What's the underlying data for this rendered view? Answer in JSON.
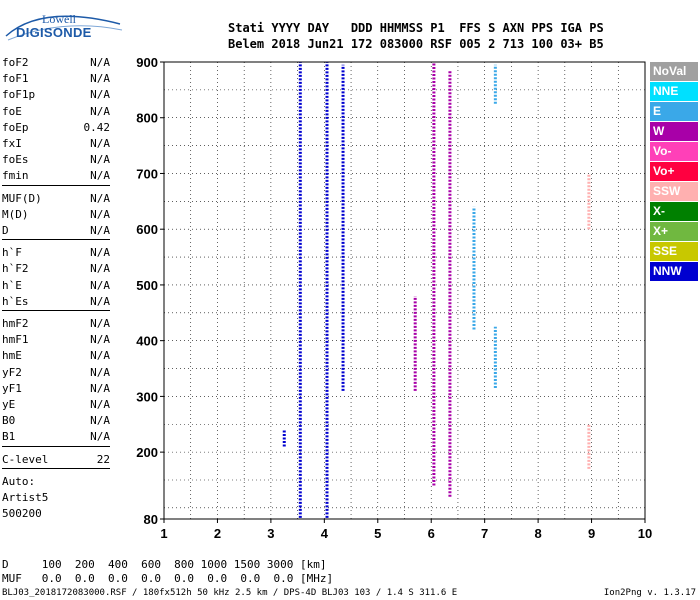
{
  "logo": {
    "line1": "Lowell",
    "line2": "DIGISONDE"
  },
  "header": {
    "line1": "Stati YYYY DAY   DDD HHMMSS P1  FFS S AXN PPS IGA PS",
    "line2": "Belem 2018 Jun21 172 083000 RSF 005 2 713 100 03+ B5"
  },
  "params": {
    "group1": [
      {
        "label": "foF2",
        "value": "N/A"
      },
      {
        "label": "foF1",
        "value": "N/A"
      },
      {
        "label": "foF1p",
        "value": "N/A"
      },
      {
        "label": "foE",
        "value": "N/A"
      },
      {
        "label": "foEp",
        "value": "0.42"
      },
      {
        "label": "fxI",
        "value": "N/A"
      },
      {
        "label": "foEs",
        "value": "N/A"
      },
      {
        "label": "fmin",
        "value": "N/A"
      }
    ],
    "group2": [
      {
        "label": "MUF(D)",
        "value": "N/A"
      },
      {
        "label": "M(D)",
        "value": "N/A"
      },
      {
        "label": "D",
        "value": "N/A"
      }
    ],
    "group3": [
      {
        "label": "h`F",
        "value": "N/A"
      },
      {
        "label": "h`F2",
        "value": "N/A"
      },
      {
        "label": "h`E",
        "value": "N/A"
      },
      {
        "label": "h`Es",
        "value": "N/A"
      }
    ],
    "group4": [
      {
        "label": "hmF2",
        "value": "N/A"
      },
      {
        "label": "hmF1",
        "value": "N/A"
      },
      {
        "label": "hmE",
        "value": "N/A"
      },
      {
        "label": "yF2",
        "value": "N/A"
      },
      {
        "label": "yF1",
        "value": "N/A"
      },
      {
        "label": "yE",
        "value": "N/A"
      },
      {
        "label": "B0",
        "value": "N/A"
      },
      {
        "label": "B1",
        "value": "N/A"
      }
    ],
    "clevel": {
      "label": "C-level",
      "value": "22"
    },
    "auto": {
      "label": "Auto:",
      "artist": "Artist5",
      "version": "500200"
    }
  },
  "legend": [
    {
      "label": "NoVal",
      "color": "#a0a0a0"
    },
    {
      "label": "NNE",
      "color": "#00e0ff"
    },
    {
      "label": "E",
      "color": "#3aa8e8"
    },
    {
      "label": "W",
      "color": "#a800a8"
    },
    {
      "label": "Vo-",
      "color": "#ff40b8"
    },
    {
      "label": "Vo+",
      "color": "#ff0040"
    },
    {
      "label": "SSW",
      "color": "#ffb0b0"
    },
    {
      "label": "X-",
      "color": "#008000"
    },
    {
      "label": "X+",
      "color": "#70b840"
    },
    {
      "label": "SSE",
      "color": "#c8c800"
    },
    {
      "label": "NNW",
      "color": "#0000d0"
    }
  ],
  "muf_table": {
    "row1": "D     100  200  400  600  800 1000 1500 3000 [km]",
    "row2": "MUF   0.0  0.0  0.0  0.0  0.0  0.0  0.0  0.0 [MHz]"
  },
  "footer": "BLJ03_2018172083000.RSF / 180fx512h 50 kHz 2.5 km / DPS-4D BLJ03 103 / 1.4 S 311.6 E",
  "version": "Ion2Png v. 1.3.17",
  "chart_data": {
    "type": "scatter",
    "xlim": [
      1,
      10
    ],
    "ylim": [
      80,
      900
    ],
    "x_ticks": [
      1,
      2,
      3,
      4,
      5,
      6,
      7,
      8,
      9,
      10
    ],
    "y_ticks": [
      80,
      200,
      300,
      400,
      500,
      600,
      700,
      800,
      900
    ],
    "xlabel": "",
    "ylabel": "",
    "grid": true,
    "series": [
      {
        "name": "NNW",
        "segments": [
          {
            "x": 3.55,
            "y0": 82,
            "y1": 900
          },
          {
            "x": 4.05,
            "y0": 82,
            "y1": 900
          },
          {
            "x": 4.35,
            "y0": 310,
            "y1": 895
          },
          {
            "x": 3.25,
            "y0": 210,
            "y1": 240
          }
        ]
      },
      {
        "name": "W",
        "segments": [
          {
            "x": 6.05,
            "y0": 140,
            "y1": 900
          },
          {
            "x": 6.35,
            "y0": 120,
            "y1": 885
          },
          {
            "x": 5.7,
            "y0": 310,
            "y1": 480
          }
        ]
      },
      {
        "name": "E",
        "segments": [
          {
            "x": 7.2,
            "y0": 315,
            "y1": 425
          },
          {
            "x": 7.2,
            "y0": 825,
            "y1": 895
          },
          {
            "x": 6.8,
            "y0": 420,
            "y1": 640
          }
        ]
      },
      {
        "name": "SSW",
        "segments": [
          {
            "x": 8.95,
            "y0": 170,
            "y1": 250
          },
          {
            "x": 8.95,
            "y0": 600,
            "y1": 700
          }
        ]
      }
    ]
  }
}
